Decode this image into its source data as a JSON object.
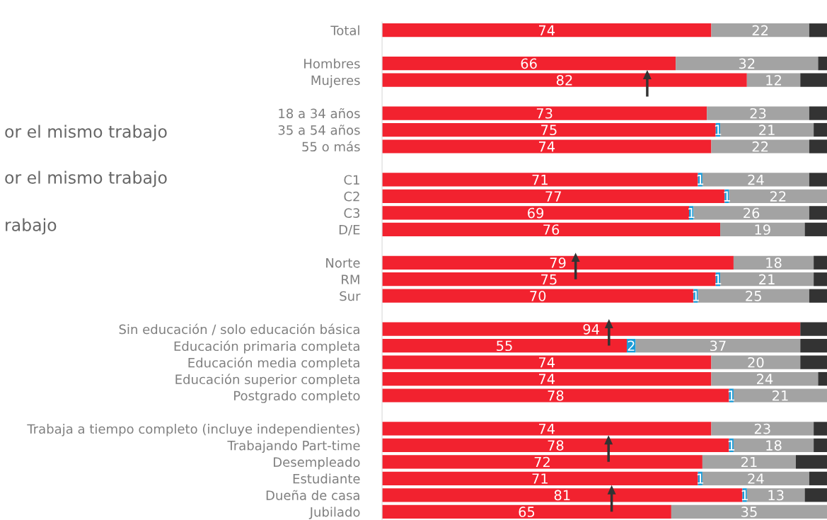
{
  "chart_data": {
    "type": "bar",
    "orientation": "horizontal",
    "stacked": true,
    "grid": false,
    "legend": false,
    "categories": [
      "Total",
      null,
      "Hombres",
      "Mujeres",
      null,
      "18 a 34 años",
      "35 a 54 años",
      "55 o más",
      null,
      "C1",
      "C2",
      "C3",
      "D/E",
      null,
      "Norte",
      "RM",
      "Sur",
      null,
      "Sin educación / solo educación básica",
      "Educación primaria completa",
      "Educación media completa",
      "Educación superior completa",
      "Postgrado completo",
      null,
      "Trabaja a tiempo completo (incluye independientes)",
      "Trabajando Part-time",
      "Desempleado",
      "Estudiante",
      "Dueña de casa",
      "Jubilado"
    ],
    "series": [
      {
        "color": "#f2222f",
        "values": [
          74,
          null,
          66,
          82,
          null,
          73,
          75,
          74,
          null,
          71,
          77,
          69,
          76,
          null,
          79,
          75,
          70,
          null,
          94,
          55,
          74,
          74,
          78,
          null,
          74,
          78,
          72,
          71,
          81,
          65
        ],
        "value_labels": [
          "74",
          null,
          "66",
          "82",
          null,
          "73",
          "75",
          "74",
          null,
          "71",
          "77",
          "69",
          "76",
          null,
          "79",
          "75",
          "70",
          null,
          "94",
          "55",
          "74",
          "74",
          "78",
          null,
          "74",
          "78",
          "72",
          "71",
          "81",
          "65"
        ]
      },
      {
        "color": "#1a9bd7",
        "values": [
          null,
          null,
          null,
          null,
          null,
          null,
          1,
          null,
          null,
          1,
          1,
          1,
          null,
          null,
          null,
          1,
          1,
          null,
          null,
          2,
          null,
          null,
          1,
          null,
          null,
          1,
          null,
          1,
          1,
          null
        ],
        "value_labels": [
          null,
          null,
          null,
          null,
          null,
          null,
          "1",
          null,
          null,
          "1",
          "1",
          "1",
          null,
          null,
          null,
          "1",
          "1",
          null,
          null,
          "2",
          null,
          null,
          "1",
          null,
          null,
          "1",
          null,
          "1",
          "1",
          null
        ]
      },
      {
        "color": "#a3a3a3",
        "values": [
          22,
          null,
          32,
          12,
          null,
          23,
          21,
          22,
          null,
          24,
          22,
          26,
          19,
          null,
          18,
          21,
          25,
          null,
          null,
          37,
          20,
          24,
          21,
          null,
          23,
          18,
          21,
          24,
          13,
          35
        ],
        "value_labels": [
          "22",
          null,
          "32",
          "12",
          null,
          "23",
          "21",
          "22",
          null,
          "24",
          "22",
          "26",
          "19",
          null,
          "18",
          "21",
          "25",
          null,
          null,
          "37",
          "20",
          "24",
          "21",
          null,
          "23",
          "18",
          "21",
          "24",
          "13",
          "35"
        ]
      },
      {
        "color": "#333333",
        "values": [
          4,
          null,
          2,
          6,
          null,
          4,
          3,
          4,
          null,
          4,
          null,
          4,
          5,
          null,
          3,
          3,
          4,
          null,
          6,
          6,
          6,
          2,
          null,
          null,
          3,
          3,
          7,
          4,
          5,
          null
        ]
      }
    ],
    "annotations": [
      "or el mismo trabajo",
      "or el mismo trabajo",
      "rabajo"
    ]
  }
}
